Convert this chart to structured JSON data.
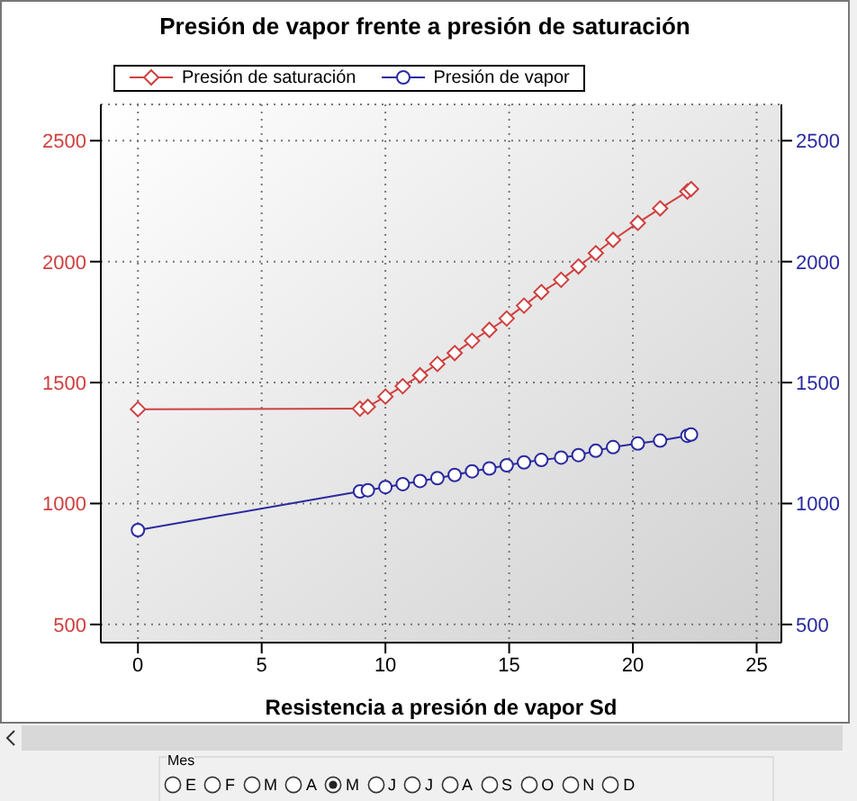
{
  "chart_data": {
    "type": "line",
    "title": "Presión de vapor frente a presión de saturación",
    "xlabel": "Resistencia a presión de vapor Sd",
    "xlim": [
      -1.5,
      26
    ],
    "xticks": [
      0,
      5,
      10,
      15,
      20,
      25
    ],
    "ylim": [
      425,
      2650
    ],
    "yticks": [
      500,
      1000,
      1500,
      2000,
      2500
    ],
    "y2lim": [
      425,
      2650
    ],
    "y2ticks": [
      500,
      1000,
      1500,
      2000,
      2500
    ],
    "grid": true,
    "legend": "top left",
    "line_style": "solid",
    "series": [
      {
        "name": "Presión de saturación",
        "color": "#d04040",
        "marker": "diamond",
        "x": [
          0,
          8.97,
          9.29,
          10.0,
          10.7,
          11.4,
          12.1,
          12.8,
          13.5,
          14.2,
          14.9,
          15.6,
          16.3,
          17.1,
          17.8,
          18.5,
          19.2,
          20.2,
          21.1,
          22.2,
          22.35
        ],
        "values": [
          1390,
          1392,
          1400,
          1442,
          1485,
          1530,
          1577,
          1622,
          1673,
          1718,
          1765,
          1818,
          1874,
          1925,
          1980,
          2035,
          2090,
          2160,
          2220,
          2290,
          2300
        ]
      },
      {
        "name": "Presión de vapor",
        "color": "#2a2aa0",
        "marker": "circle",
        "axis": "y2",
        "x": [
          0,
          8.97,
          9.29,
          10.0,
          10.7,
          11.4,
          12.1,
          12.8,
          13.5,
          14.2,
          14.9,
          15.6,
          16.3,
          17.1,
          17.8,
          18.5,
          19.2,
          20.2,
          21.1,
          22.2,
          22.35
        ],
        "values": [
          890,
          1050,
          1055,
          1068,
          1080,
          1093,
          1105,
          1118,
          1133,
          1145,
          1158,
          1170,
          1180,
          1190,
          1200,
          1218,
          1233,
          1248,
          1260,
          1280,
          1285
        ]
      }
    ],
    "annotations": [
      "Mes",
      "E",
      "F",
      "M",
      "A",
      "M",
      "J",
      "J",
      "A",
      "S",
      "O",
      "N",
      "D"
    ]
  }
}
